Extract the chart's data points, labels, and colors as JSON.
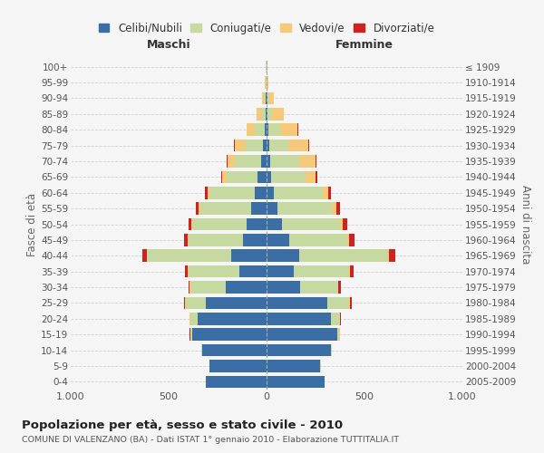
{
  "age_groups": [
    "0-4",
    "5-9",
    "10-14",
    "15-19",
    "20-24",
    "25-29",
    "30-34",
    "35-39",
    "40-44",
    "45-49",
    "50-54",
    "55-59",
    "60-64",
    "65-69",
    "70-74",
    "75-79",
    "80-84",
    "85-89",
    "90-94",
    "95-99",
    "100+"
  ],
  "birth_years": [
    "2005-2009",
    "2000-2004",
    "1995-1999",
    "1990-1994",
    "1985-1989",
    "1980-1984",
    "1975-1979",
    "1970-1974",
    "1965-1969",
    "1960-1964",
    "1955-1959",
    "1950-1954",
    "1945-1949",
    "1940-1944",
    "1935-1939",
    "1930-1934",
    "1925-1929",
    "1920-1924",
    "1915-1919",
    "1910-1914",
    "≤ 1909"
  ],
  "colors": {
    "celibe": "#3a6ea5",
    "coniugato": "#c5d9a0",
    "vedovo": "#f5c97a",
    "divorziato": "#cc2222"
  },
  "males": {
    "celibe": [
      310,
      290,
      330,
      380,
      350,
      310,
      210,
      140,
      180,
      120,
      100,
      80,
      60,
      45,
      30,
      20,
      10,
      5,
      3,
      2,
      2
    ],
    "coniugato": [
      0,
      1,
      3,
      10,
      40,
      100,
      180,
      260,
      430,
      280,
      280,
      260,
      230,
      160,
      130,
      90,
      50,
      20,
      8,
      3,
      2
    ],
    "vedovo": [
      0,
      0,
      0,
      1,
      2,
      5,
      2,
      2,
      2,
      3,
      5,
      5,
      10,
      20,
      40,
      50,
      40,
      25,
      10,
      2,
      0
    ],
    "divorziato": [
      0,
      0,
      0,
      2,
      3,
      5,
      8,
      15,
      20,
      20,
      15,
      15,
      15,
      5,
      5,
      5,
      2,
      0,
      0,
      0,
      0
    ]
  },
  "females": {
    "nubile": [
      295,
      275,
      330,
      360,
      330,
      310,
      170,
      140,
      165,
      115,
      80,
      55,
      35,
      25,
      18,
      12,
      8,
      5,
      3,
      2,
      2
    ],
    "coniugata": [
      0,
      1,
      3,
      12,
      45,
      110,
      195,
      280,
      450,
      295,
      295,
      280,
      250,
      175,
      150,
      100,
      60,
      25,
      10,
      2,
      2
    ],
    "vedova": [
      0,
      0,
      0,
      1,
      2,
      5,
      3,
      5,
      8,
      10,
      15,
      20,
      30,
      50,
      80,
      100,
      90,
      60,
      25,
      5,
      0
    ],
    "divorziata": [
      0,
      0,
      0,
      2,
      3,
      8,
      12,
      20,
      35,
      30,
      20,
      20,
      15,
      10,
      5,
      5,
      2,
      0,
      0,
      0,
      0
    ]
  },
  "title": "Popolazione per età, sesso e stato civile - 2010",
  "subtitle": "COMUNE DI VALENZANO (BA) - Dati ISTAT 1° gennaio 2010 - Elaborazione TUTTITALIA.IT",
  "xlabel_left": "Maschi",
  "xlabel_right": "Femmine",
  "ylabel_left": "Fasce di età",
  "ylabel_right": "Anni di nascita",
  "xlim": 1000,
  "legend_labels": [
    "Celibi/Nubili",
    "Coniugati/e",
    "Vedovi/e",
    "Divorziati/e"
  ],
  "background_color": "#f5f5f5",
  "grid_color": "#cccccc"
}
